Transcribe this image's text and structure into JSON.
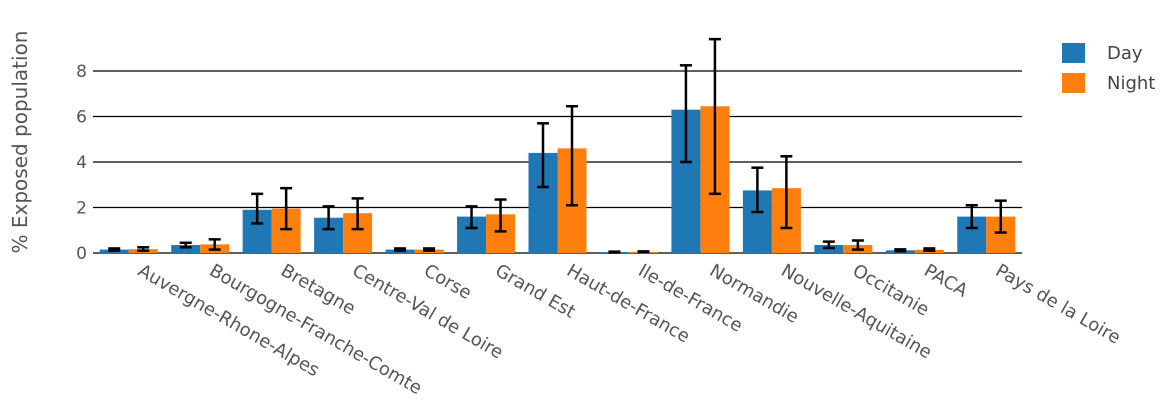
{
  "chart_data": {
    "type": "bar",
    "title": "",
    "xlabel": "",
    "ylabel": "% Exposed population",
    "ylim": [
      0,
      9.5
    ],
    "yticks": [
      0,
      2,
      4,
      6,
      8
    ],
    "grid": true,
    "legend_position": "top-right",
    "categories": [
      "Auvergne-Rhone-Alpes",
      "Bourgogne-Franche-Comte",
      "Bretagne",
      "Centre-Val de Loire",
      "Corse",
      "Grand Est",
      "Haut-de-France",
      "Ile-de-France",
      "Normandie",
      "Nouvelle-Aquitaine",
      "Occitanie",
      "PACA",
      "Pays de la Loire"
    ],
    "series": [
      {
        "name": "Day",
        "color": "#1f77b4",
        "values": [
          0.15,
          0.35,
          1.9,
          1.55,
          0.15,
          1.6,
          4.4,
          0.04,
          6.3,
          2.75,
          0.35,
          0.12,
          1.6
        ],
        "err_low": [
          0.1,
          0.25,
          1.3,
          1.05,
          0.1,
          1.1,
          2.9,
          0.02,
          4.0,
          1.8,
          0.22,
          0.08,
          1.1
        ],
        "err_high": [
          0.2,
          0.45,
          2.6,
          2.05,
          0.2,
          2.05,
          5.7,
          0.06,
          8.25,
          3.75,
          0.5,
          0.16,
          2.1
        ]
      },
      {
        "name": "Night",
        "color": "#ff7f0e",
        "values": [
          0.17,
          0.38,
          1.95,
          1.75,
          0.15,
          1.7,
          4.6,
          0.05,
          6.45,
          2.85,
          0.35,
          0.14,
          1.6
        ],
        "err_low": [
          0.1,
          0.15,
          1.05,
          1.05,
          0.1,
          0.95,
          2.1,
          0.03,
          2.6,
          1.1,
          0.15,
          0.1,
          0.9
        ],
        "err_high": [
          0.25,
          0.6,
          2.85,
          2.4,
          0.2,
          2.35,
          6.45,
          0.07,
          9.4,
          4.25,
          0.55,
          0.2,
          2.3
        ]
      }
    ]
  }
}
